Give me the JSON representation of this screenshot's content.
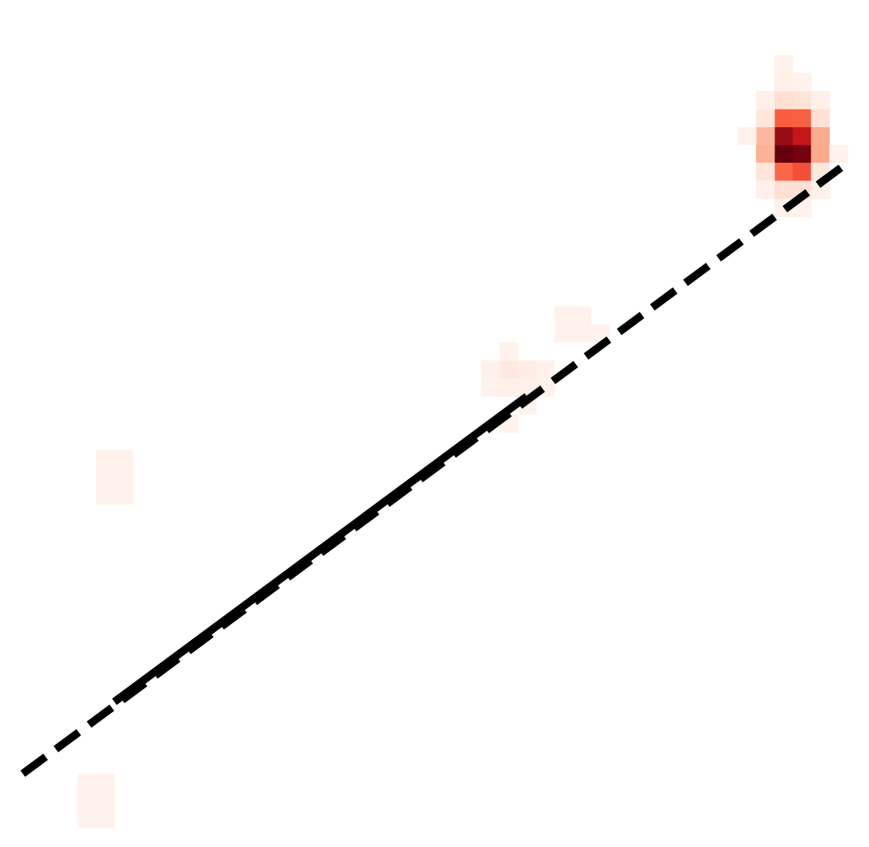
{
  "chart_data": {
    "type": "heatmap",
    "colormap": "Reds",
    "grid": false,
    "axes_visible": false,
    "x_range": [
      0,
      45
    ],
    "y_range": [
      0,
      45
    ],
    "bins": 45,
    "max_count": 100,
    "cells": [
      [
        41,
        38,
        100
      ],
      [
        42,
        38,
        97
      ],
      [
        41,
        39,
        88
      ],
      [
        42,
        39,
        74
      ],
      [
        40,
        38,
        22
      ],
      [
        43,
        38,
        25
      ],
      [
        40,
        39,
        20
      ],
      [
        43,
        39,
        24
      ],
      [
        41,
        37,
        45
      ],
      [
        42,
        37,
        52
      ],
      [
        41,
        40,
        48
      ],
      [
        42,
        40,
        47
      ],
      [
        40,
        37,
        6
      ],
      [
        43,
        37,
        5
      ],
      [
        40,
        40,
        6
      ],
      [
        43,
        40,
        8
      ],
      [
        41,
        36,
        9
      ],
      [
        42,
        36,
        8
      ],
      [
        41,
        41,
        9
      ],
      [
        42,
        41,
        7
      ],
      [
        40,
        36,
        2
      ],
      [
        43,
        36,
        2
      ],
      [
        40,
        41,
        2
      ],
      [
        43,
        41,
        2
      ],
      [
        41,
        35,
        1
      ],
      [
        42,
        35,
        1
      ],
      [
        41,
        42,
        2
      ],
      [
        42,
        42,
        1
      ],
      [
        44,
        38,
        1
      ],
      [
        39,
        39,
        1
      ],
      [
        41,
        43,
        1
      ],
      [
        26,
        26,
        4
      ],
      [
        27,
        26,
        3
      ],
      [
        26,
        25,
        2
      ],
      [
        27,
        25,
        2
      ],
      [
        25,
        26,
        2
      ],
      [
        28,
        26,
        1
      ],
      [
        26,
        27,
        1
      ],
      [
        27,
        24,
        1
      ],
      [
        25,
        25,
        1
      ],
      [
        28,
        25,
        1
      ],
      [
        26,
        23,
        1
      ],
      [
        29,
        29,
        1
      ],
      [
        30,
        29,
        1
      ],
      [
        29,
        28,
        1
      ],
      [
        30,
        28,
        1
      ],
      [
        31,
        28,
        1
      ],
      [
        4,
        19,
        1
      ],
      [
        5,
        19,
        1
      ],
      [
        4,
        20,
        1
      ],
      [
        5,
        20,
        1
      ],
      [
        4,
        21,
        1
      ],
      [
        5,
        21,
        1
      ],
      [
        3,
        3,
        1
      ],
      [
        4,
        3,
        1
      ],
      [
        3,
        2,
        1
      ],
      [
        4,
        2,
        1
      ],
      [
        3,
        1,
        1
      ],
      [
        4,
        1,
        1
      ]
    ],
    "series": [
      {
        "style": "solid",
        "x": [
          5.0,
          27.5
        ],
        "y": [
          8.0,
          25.0
        ]
      },
      {
        "style": "dashed",
        "x": [
          0.0,
          45.0
        ],
        "y": [
          4.0,
          38.0
        ]
      }
    ]
  }
}
